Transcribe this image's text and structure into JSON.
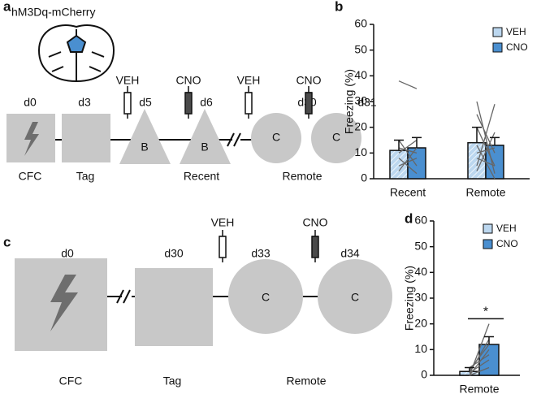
{
  "panel_labels": [
    "a",
    "b",
    "c",
    "d"
  ],
  "diagram_a": {
    "construct": "hM3Dq-mCherry",
    "days": [
      "d0",
      "d3",
      "d5",
      "d6",
      "d30",
      "d31"
    ],
    "drugs": [
      "VEH",
      "CNO",
      "VEH",
      "CNO"
    ],
    "shape_labels": [
      "B",
      "B",
      "C",
      "C"
    ],
    "phases": [
      "CFC",
      "Tag",
      "Recent",
      "Remote"
    ]
  },
  "diagram_c": {
    "days": [
      "d0",
      "d30",
      "d33",
      "d34"
    ],
    "drugs": [
      "VEH",
      "CNO"
    ],
    "shape_labels": [
      "C",
      "C"
    ],
    "phases": [
      "CFC",
      "Tag",
      "Remote"
    ]
  },
  "chart_data": [
    {
      "type": "bar",
      "ylabel": "Freezing (%)",
      "categories": [
        "Recent",
        "Remote"
      ],
      "ylim": [
        0,
        60
      ],
      "yticks": [
        0,
        10,
        20,
        30,
        40,
        50,
        60
      ],
      "legend": "upper right",
      "series": [
        {
          "name": "VEH",
          "color": "#bcd7ef",
          "values": [
            11,
            14
          ],
          "errors": [
            4,
            6
          ]
        },
        {
          "name": "CNO",
          "color": "#4a8fd0",
          "values": [
            12,
            13
          ],
          "errors": [
            4,
            3
          ]
        }
      ],
      "subjects": [
        [
          [
            38,
            35
          ],
          [
            15,
            5
          ],
          [
            10,
            15
          ],
          [
            5,
            8
          ],
          [
            3,
            12
          ],
          [
            8,
            2
          ],
          [
            12,
            10
          ]
        ],
        [
          [
            30,
            2
          ],
          [
            25,
            10
          ],
          [
            20,
            5
          ],
          [
            5,
            29
          ],
          [
            3,
            18
          ],
          [
            10,
            12
          ],
          [
            8,
            5
          ],
          [
            13,
            0
          ]
        ]
      ]
    },
    {
      "type": "bar",
      "ylabel": "Freezing (%)",
      "categories": [
        "Remote"
      ],
      "ylim": [
        0,
        60
      ],
      "yticks": [
        0,
        10,
        20,
        30,
        40,
        50,
        60
      ],
      "legend": "upper right",
      "annotation": "*",
      "series": [
        {
          "name": "VEH",
          "color": "#bcd7ef",
          "values": [
            1.5
          ],
          "errors": [
            1.5
          ]
        },
        {
          "name": "CNO",
          "color": "#4a8fd0",
          "values": [
            12
          ],
          "errors": [
            3
          ]
        }
      ],
      "subjects": [
        [
          [
            0,
            20
          ],
          [
            1,
            14
          ],
          [
            2,
            12
          ],
          [
            0,
            10
          ],
          [
            3,
            8
          ],
          [
            1,
            6
          ],
          [
            0,
            3
          ]
        ]
      ]
    }
  ]
}
